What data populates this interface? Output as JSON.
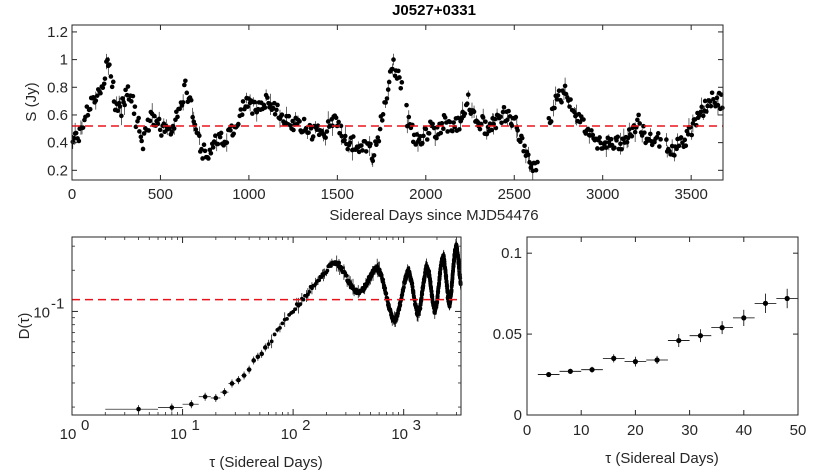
{
  "chart_data": [
    {
      "type": "scatter",
      "title": "J0527+0331",
      "xlabel": "Sidereal Days since MJD54476",
      "ylabel": "S (Jy)",
      "xlim": [
        0,
        3680
      ],
      "ylim": [
        0.13,
        1.25
      ],
      "xticks": [
        0,
        500,
        1000,
        1500,
        2000,
        2500,
        3000,
        3500
      ],
      "yticks": [
        0.2,
        0.4,
        0.6,
        0.8,
        1,
        1.2
      ],
      "ytick_labels": [
        "0.2",
        "0.4",
        "0.6",
        "0.8",
        "1",
        "1.2"
      ],
      "reference_line": {
        "y": 0.52,
        "color": "#e8141c",
        "style": "dashed"
      },
      "marker_color": "#000000",
      "anchors": [
        [
          0,
          0.4
        ],
        [
          30,
          0.43
        ],
        [
          60,
          0.5
        ],
        [
          90,
          0.65
        ],
        [
          130,
          0.7
        ],
        [
          160,
          0.75
        ],
        [
          190,
          0.92
        ],
        [
          215,
          0.98
        ],
        [
          240,
          0.7
        ],
        [
          270,
          0.62
        ],
        [
          300,
          0.72
        ],
        [
          330,
          0.78
        ],
        [
          360,
          0.58
        ],
        [
          380,
          0.5
        ],
        [
          400,
          0.4
        ],
        [
          420,
          0.48
        ],
        [
          450,
          0.6
        ],
        [
          480,
          0.55
        ],
        [
          510,
          0.5
        ],
        [
          540,
          0.48
        ],
        [
          570,
          0.52
        ],
        [
          600,
          0.6
        ],
        [
          620,
          0.7
        ],
        [
          645,
          0.8
        ],
        [
          670,
          0.68
        ],
        [
          700,
          0.5
        ],
        [
          720,
          0.4
        ],
        [
          745,
          0.33
        ],
        [
          770,
          0.3
        ],
        [
          800,
          0.38
        ],
        [
          830,
          0.42
        ],
        [
          870,
          0.45
        ],
        [
          910,
          0.5
        ],
        [
          940,
          0.55
        ],
        [
          970,
          0.65
        ],
        [
          1000,
          0.7
        ],
        [
          1040,
          0.62
        ],
        [
          1080,
          0.68
        ],
        [
          1120,
          0.7
        ],
        [
          1160,
          0.62
        ],
        [
          1200,
          0.58
        ],
        [
          1250,
          0.55
        ],
        [
          1300,
          0.52
        ],
        [
          1350,
          0.48
        ],
        [
          1400,
          0.46
        ],
        [
          1450,
          0.5
        ],
        [
          1500,
          0.58
        ],
        [
          1530,
          0.45
        ],
        [
          1560,
          0.38
        ],
        [
          1600,
          0.4
        ],
        [
          1650,
          0.38
        ],
        [
          1700,
          0.32
        ],
        [
          1730,
          0.45
        ],
        [
          1760,
          0.6
        ],
        [
          1790,
          0.85
        ],
        [
          1820,
          0.95
        ],
        [
          1850,
          0.9
        ],
        [
          1880,
          0.7
        ],
        [
          1900,
          0.55
        ],
        [
          1930,
          0.45
        ],
        [
          1960,
          0.4
        ],
        [
          1990,
          0.45
        ],
        [
          2030,
          0.5
        ],
        [
          2070,
          0.48
        ],
        [
          2110,
          0.55
        ],
        [
          2150,
          0.5
        ],
        [
          2200,
          0.55
        ],
        [
          2240,
          0.7
        ],
        [
          2270,
          0.62
        ],
        [
          2310,
          0.55
        ],
        [
          2350,
          0.5
        ],
        [
          2390,
          0.55
        ],
        [
          2430,
          0.6
        ],
        [
          2470,
          0.62
        ],
        [
          2500,
          0.55
        ],
        [
          2530,
          0.45
        ],
        [
          2560,
          0.35
        ],
        [
          2590,
          0.25
        ],
        [
          2615,
          0.22
        ],
        [
          2700,
          0.55
        ],
        [
          2740,
          0.7
        ],
        [
          2770,
          0.75
        ],
        [
          2790,
          0.78
        ],
        [
          2840,
          0.6
        ],
        [
          2880,
          0.55
        ],
        [
          2920,
          0.45
        ],
        [
          2960,
          0.42
        ],
        [
          3000,
          0.4
        ],
        [
          3040,
          0.42
        ],
        [
          3080,
          0.38
        ],
        [
          3120,
          0.42
        ],
        [
          3160,
          0.5
        ],
        [
          3200,
          0.55
        ],
        [
          3240,
          0.45
        ],
        [
          3280,
          0.4
        ],
        [
          3320,
          0.42
        ],
        [
          3360,
          0.4
        ],
        [
          3400,
          0.35
        ],
        [
          3440,
          0.38
        ],
        [
          3480,
          0.45
        ],
        [
          3520,
          0.55
        ],
        [
          3560,
          0.62
        ],
        [
          3600,
          0.7
        ],
        [
          3640,
          0.72
        ],
        [
          3680,
          0.68
        ]
      ],
      "gaps": [
        [
          1868,
          1890
        ],
        [
          2635,
          2690
        ],
        [
          3330,
          3358
        ]
      ]
    },
    {
      "type": "scatter",
      "title": "",
      "xlabel": "τ (Sidereal Days)",
      "ylabel": "D(τ)",
      "xscale": "log",
      "yscale": "log",
      "xlim": [
        1,
        3300
      ],
      "ylim": [
        0.0175,
        0.35
      ],
      "xticks": [
        1,
        10,
        100,
        1000
      ],
      "xtick_labels": [
        {
          "base": "10",
          "exp": "0"
        },
        {
          "base": "10",
          "exp": "1"
        },
        {
          "base": "10",
          "exp": "2"
        },
        {
          "base": "10",
          "exp": "3"
        }
      ],
      "yticks": [
        0.1
      ],
      "ytick_labels": [
        {
          "base": "10",
          "exp": "-1"
        }
      ],
      "reference_line": {
        "y": 0.122,
        "color": "#e8141c",
        "style": "dashed"
      },
      "marker_color": "#000000",
      "points": [
        [
          4,
          0.019
        ],
        [
          8,
          0.0205
        ],
        [
          12,
          0.0215
        ],
        [
          16,
          0.0235
        ],
        [
          20,
          0.0242
        ],
        [
          24,
          0.0255
        ],
        [
          28,
          0.029
        ],
        [
          32,
          0.032
        ],
        [
          36,
          0.035
        ],
        [
          40,
          0.039
        ],
        [
          44,
          0.043
        ],
        [
          48,
          0.047
        ],
        [
          54,
          0.052
        ],
        [
          60,
          0.058
        ],
        [
          66,
          0.065
        ],
        [
          72,
          0.072
        ],
        [
          80,
          0.08
        ],
        [
          88,
          0.088
        ],
        [
          96,
          0.095
        ],
        [
          104,
          0.105
        ],
        [
          112,
          0.113
        ],
        [
          120,
          0.12
        ],
        [
          130,
          0.13
        ],
        [
          140,
          0.142
        ],
        [
          150,
          0.152
        ],
        [
          165,
          0.168
        ],
        [
          180,
          0.185
        ],
        [
          200,
          0.2
        ],
        [
          220,
          0.218
        ],
        [
          240,
          0.228
        ],
        [
          260,
          0.22
        ],
        [
          285,
          0.195
        ],
        [
          310,
          0.17
        ],
        [
          340,
          0.15
        ],
        [
          370,
          0.14
        ],
        [
          400,
          0.138
        ],
        [
          430,
          0.145
        ],
        [
          460,
          0.16
        ],
        [
          500,
          0.18
        ],
        [
          540,
          0.2
        ],
        [
          580,
          0.21
        ],
        [
          620,
          0.19
        ],
        [
          670,
          0.15
        ],
        [
          720,
          0.115
        ],
        [
          780,
          0.09
        ],
        [
          840,
          0.085
        ],
        [
          900,
          0.1
        ],
        [
          960,
          0.13
        ],
        [
          1030,
          0.17
        ],
        [
          1100,
          0.2
        ],
        [
          1170,
          0.17
        ],
        [
          1250,
          0.12
        ],
        [
          1330,
          0.095
        ],
        [
          1420,
          0.11
        ],
        [
          1510,
          0.16
        ],
        [
          1600,
          0.21
        ],
        [
          1700,
          0.19
        ],
        [
          1800,
          0.13
        ],
        [
          1900,
          0.1
        ],
        [
          2000,
          0.115
        ],
        [
          2100,
          0.17
        ],
        [
          2200,
          0.23
        ],
        [
          2300,
          0.25
        ],
        [
          2400,
          0.19
        ],
        [
          2500,
          0.13
        ],
        [
          2600,
          0.11
        ],
        [
          2700,
          0.14
        ],
        [
          2800,
          0.2
        ],
        [
          2900,
          0.27
        ],
        [
          3000,
          0.3
        ],
        [
          3100,
          0.25
        ],
        [
          3200,
          0.19
        ],
        [
          3280,
          0.16
        ]
      ]
    },
    {
      "type": "scatter",
      "title": "",
      "xlabel": "τ (Sidereal Days)",
      "ylabel": "",
      "xlim": [
        0,
        50
      ],
      "ylim": [
        0,
        0.11
      ],
      "xticks": [
        0,
        10,
        20,
        30,
        40,
        50
      ],
      "yticks": [
        0,
        0.05,
        0.1
      ],
      "ytick_labels": [
        "0",
        "0.05",
        "0.1"
      ],
      "marker_color": "#000000",
      "points": [
        {
          "x": 4,
          "y": 0.025,
          "xerr": 2,
          "yerr": 0.0015
        },
        {
          "x": 8,
          "y": 0.027,
          "xerr": 2,
          "yerr": 0.0015
        },
        {
          "x": 12,
          "y": 0.028,
          "xerr": 2,
          "yerr": 0.0018
        },
        {
          "x": 16,
          "y": 0.035,
          "xerr": 2,
          "yerr": 0.0025
        },
        {
          "x": 20,
          "y": 0.033,
          "xerr": 2,
          "yerr": 0.003
        },
        {
          "x": 24,
          "y": 0.034,
          "xerr": 2,
          "yerr": 0.0025
        },
        {
          "x": 28,
          "y": 0.046,
          "xerr": 2,
          "yerr": 0.004
        },
        {
          "x": 32,
          "y": 0.049,
          "xerr": 2,
          "yerr": 0.004
        },
        {
          "x": 36,
          "y": 0.054,
          "xerr": 2,
          "yerr": 0.004
        },
        {
          "x": 40,
          "y": 0.06,
          "xerr": 2,
          "yerr": 0.005
        },
        {
          "x": 44,
          "y": 0.069,
          "xerr": 2,
          "yerr": 0.006
        },
        {
          "x": 48,
          "y": 0.072,
          "xerr": 2,
          "yerr": 0.006
        }
      ]
    }
  ]
}
